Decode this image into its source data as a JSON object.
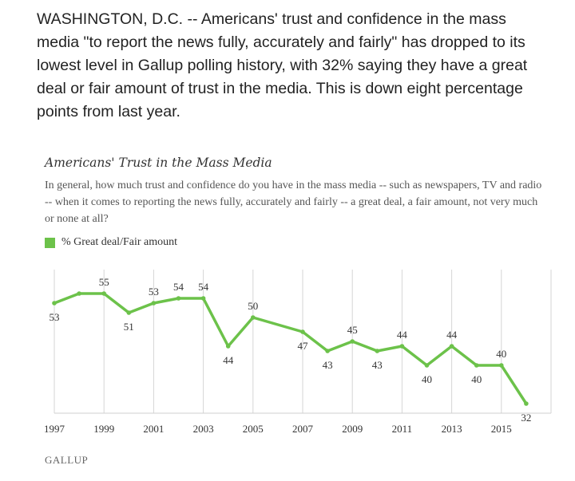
{
  "article": {
    "text": "WASHINGTON, D.C. -- Americans' trust and confidence in the mass media \"to report the news fully, accurately and fairly\" has dropped to its lowest level in Gallup polling history, with 32% saying they have a great deal or fair amount of trust in the media. This is down eight percentage points from last year."
  },
  "chart_data": {
    "type": "line",
    "title": "Americans' Trust in the Mass Media",
    "subtitle": "In general, how much trust and confidence do you have in the mass media -- such as newspapers, TV and radio -- when it comes to reporting the news fully, accurately and fairly -- a great deal, a fair amount, not very much or none at all?",
    "x": [
      1997,
      1998,
      1999,
      2000,
      2001,
      2002,
      2003,
      2004,
      2005,
      2007,
      2008,
      2009,
      2010,
      2011,
      2012,
      2013,
      2014,
      2015,
      2016
    ],
    "series": [
      {
        "name": "% Great deal/Fair amount",
        "values": [
          53,
          55,
          55,
          51,
          53,
          54,
          54,
          44,
          50,
          47,
          43,
          45,
          43,
          44,
          40,
          44,
          40,
          40,
          32
        ],
        "color": "#6cc24a"
      }
    ],
    "labeled_years": [
      1997,
      1999,
      2000,
      2001,
      2002,
      2003,
      2004,
      2005,
      2007,
      2008,
      2009,
      2010,
      2011,
      2012,
      2013,
      2014,
      2015,
      2016
    ],
    "x_ticks": [
      1997,
      1999,
      2001,
      2003,
      2005,
      2007,
      2009,
      2011,
      2013,
      2015
    ],
    "xlim": [
      1997,
      2017
    ],
    "ylim": [
      30,
      60
    ],
    "grid": "vertical",
    "legend_position": "top-left",
    "source": "GALLUP"
  }
}
